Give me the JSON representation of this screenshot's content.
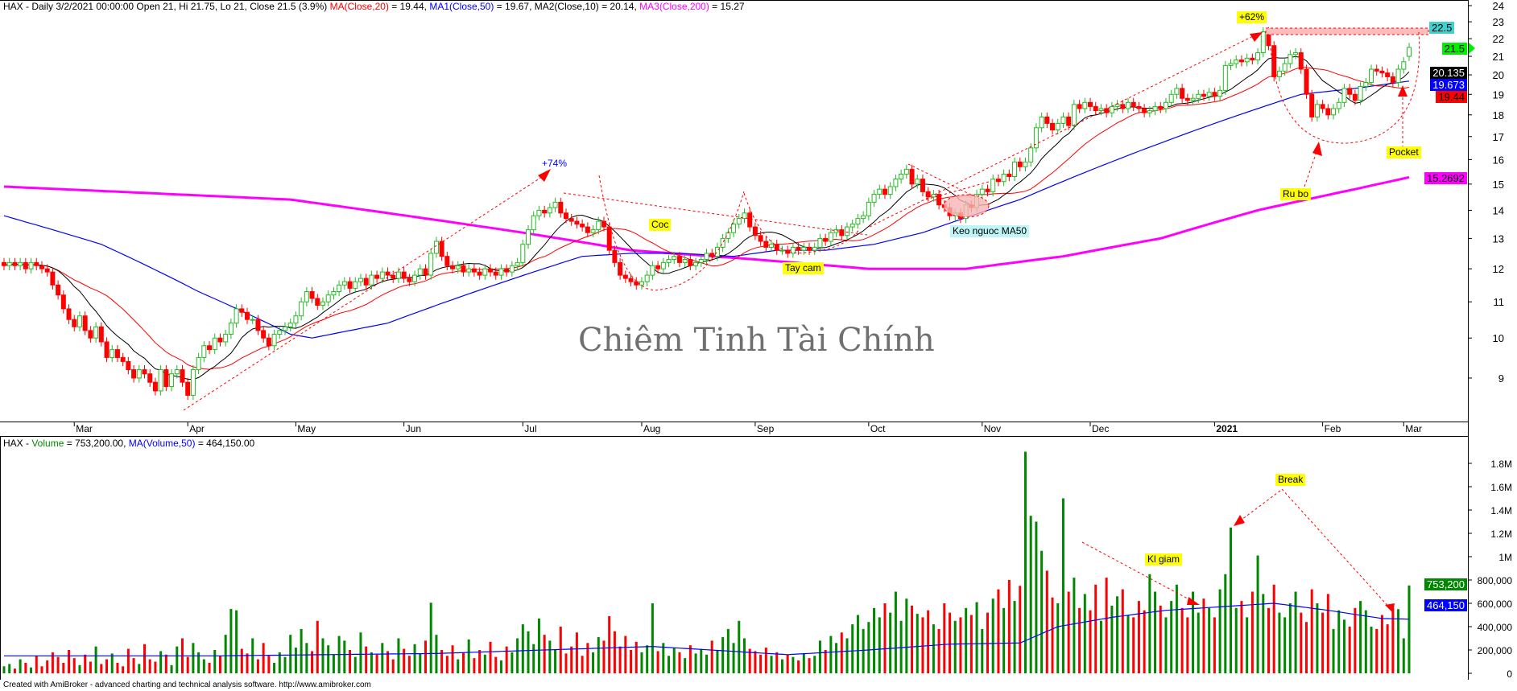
{
  "header": {
    "prefix": "HAX - Daily 3/2/2021 00:00:00 Open 21, Hi 21.75, Lo 21, Close 21.5 (3.9%) ",
    "ma20_label": "MA(Close,20)",
    "ma20_value": " = 19.44, ",
    "ma50_label": "MA1(Close,50)",
    "ma50_value": " = 19.67, MA2(Close,10) = 20.14, ",
    "ma200_label": "MA3(Close,200)",
    "ma200_value": " = 15.27"
  },
  "volume_header": {
    "prefix": "HAX - ",
    "volume_label": "Volume",
    "volume_value": " = 753,200.00, ",
    "ma_label": "MA(Volume,50)",
    "ma_value": " = 464,150.00"
  },
  "watermark": "Chiêm Tinh Tài Chính",
  "footer": "Created with AmiBroker - advanced charting and technical analysis software. http://www.amibroker.com",
  "annotations": {
    "gain_74": "+74%",
    "coc": "Coc",
    "tay_cam": "Tay cam",
    "keo_nguoc": "Keo nguoc MA50",
    "gain_62": "+62%",
    "ru_bo": "Ru bo",
    "pocket": "Pocket",
    "kl_giam": "Kl giam",
    "break": "Break"
  },
  "axis_tags": {
    "resistance": "22.5",
    "last_close": "21.5",
    "ma10": "20.135",
    "ma50": "19.673",
    "ma20": "19.44",
    "ma200": "15.2692",
    "volume": "753,200",
    "volume_ma": "464,150"
  },
  "colors": {
    "up": "#22bb22",
    "down": "#ff0000",
    "ma10": "#000000",
    "ma20": "#ff0000",
    "ma50": "#0000ff",
    "ma200": "#ff00ff",
    "volume_up": "#008800",
    "volume_down": "#ff0000",
    "volume_ma": "#0000ff"
  },
  "chart_data": {
    "type": "candlestick",
    "symbol": "HAX",
    "interval": "Daily",
    "y_scale": "log",
    "price_ticks": [
      24,
      23,
      22,
      21,
      20,
      19,
      18,
      17,
      16,
      15,
      14,
      13,
      12,
      11,
      10,
      9
    ],
    "volume_ticks": [
      {
        "value": 0,
        "label": "0"
      },
      {
        "value": 200000,
        "label": "200,000"
      },
      {
        "value": 400000,
        "label": "400,000"
      },
      {
        "value": 600000,
        "label": "600,000"
      },
      {
        "value": 800000,
        "label": "800,000"
      },
      {
        "value": 1000000,
        "label": "1M"
      },
      {
        "value": 1200000,
        "label": "1.2M"
      },
      {
        "value": 1400000,
        "label": "1.4M"
      },
      {
        "value": 1600000,
        "label": "1.6M"
      },
      {
        "value": 1800000,
        "label": "1.8M"
      }
    ],
    "month_ticks": [
      {
        "label": "Mar",
        "bar": 13
      },
      {
        "label": "Apr",
        "bar": 34
      },
      {
        "label": "May",
        "bar": 54
      },
      {
        "label": "Jun",
        "bar": 74
      },
      {
        "label": "Jul",
        "bar": 96
      },
      {
        "label": "Aug",
        "bar": 118
      },
      {
        "label": "Sep",
        "bar": 139
      },
      {
        "label": "Oct",
        "bar": 160
      },
      {
        "label": "Nov",
        "bar": 181
      },
      {
        "label": "Dec",
        "bar": 201
      },
      {
        "label": "2021",
        "bar": 224,
        "bold": true
      },
      {
        "label": "Feb",
        "bar": 244
      },
      {
        "label": "Mar",
        "bar": 259
      }
    ],
    "close": [
      12.1,
      12.2,
      12.1,
      12.2,
      12.0,
      12.2,
      12.1,
      12.0,
      11.9,
      11.5,
      11.2,
      10.8,
      10.5,
      10.3,
      10.6,
      10.2,
      10.0,
      10.3,
      9.9,
      9.5,
      9.7,
      9.5,
      9.4,
      9.2,
      9.0,
      9.2,
      9.1,
      8.9,
      8.7,
      9.2,
      8.8,
      9.1,
      9.2,
      8.9,
      8.6,
      9.2,
      9.5,
      9.8,
      9.7,
      10.0,
      9.9,
      10.1,
      10.4,
      10.8,
      10.7,
      10.5,
      10.5,
      10.2,
      10.0,
      9.8,
      10.1,
      10.2,
      10.3,
      10.4,
      10.6,
      11.0,
      11.3,
      11.1,
      10.9,
      11.0,
      11.2,
      11.3,
      11.5,
      11.6,
      11.4,
      11.6,
      11.7,
      11.5,
      11.8,
      11.7,
      11.9,
      11.8,
      11.7,
      11.9,
      11.7,
      11.6,
      11.8,
      12.0,
      11.8,
      12.5,
      12.9,
      12.4,
      12.1,
      12.0,
      12.1,
      11.9,
      12.0,
      11.9,
      11.8,
      12.0,
      11.9,
      11.8,
      12.0,
      11.9,
      12.1,
      12.2,
      12.8,
      13.3,
      13.8,
      14.0,
      13.9,
      14.1,
      14.3,
      13.9,
      13.7,
      13.6,
      13.5,
      13.4,
      13.2,
      13.3,
      13.6,
      13.4,
      12.6,
      12.2,
      11.8,
      11.7,
      11.6,
      11.5,
      11.6,
      11.8,
      12.1,
      12.0,
      12.2,
      12.3,
      12.4,
      12.2,
      12.3,
      12.1,
      12.2,
      12.3,
      12.5,
      12.4,
      12.7,
      13.0,
      13.2,
      13.5,
      13.7,
      13.9,
      13.4,
      13.1,
      12.9,
      12.7,
      12.8,
      12.6,
      12.6,
      12.5,
      12.7,
      12.6,
      12.7,
      12.6,
      12.7,
      13.0,
      12.9,
      13.2,
      13.3,
      13.1,
      13.4,
      13.5,
      13.7,
      13.8,
      14.3,
      14.6,
      14.8,
      14.6,
      14.9,
      15.2,
      15.4,
      15.6,
      15.0,
      15.2,
      14.7,
      14.5,
      14.6,
      14.2,
      14.1,
      13.8,
      13.9,
      13.7,
      14.2,
      14.1,
      14.6,
      14.8,
      14.7,
      15.2,
      15.1,
      15.4,
      15.3,
      15.9,
      15.7,
      15.9,
      16.5,
      17.4,
      17.9,
      17.6,
      17.3,
      17.6,
      17.9,
      17.5,
      18.5,
      18.3,
      18.6,
      18.4,
      18.2,
      18.3,
      18.1,
      18.4,
      18.5,
      18.3,
      18.6,
      18.4,
      18.3,
      18.1,
      18.2,
      18.4,
      18.3,
      18.6,
      19.0,
      19.3,
      18.8,
      18.7,
      18.8,
      19.0,
      18.9,
      19.1,
      18.9,
      19.2,
      20.5,
      20.6,
      20.8,
      20.7,
      20.9,
      20.8,
      21.2,
      22.4,
      21.6,
      19.9,
      20.2,
      20.6,
      21.1,
      21.2,
      20.3,
      19.0,
      17.9,
      18.5,
      18.3,
      18.0,
      18.3,
      18.6,
      19.3,
      19.0,
      18.7,
      19.4,
      19.6,
      20.3,
      20.2,
      20.1,
      19.9,
      19.6,
      20.3,
      20.7,
      21.5
    ],
    "open": [
      12.2,
      12.1,
      12.2,
      12.1,
      12.2,
      12.0,
      12.2,
      12.1,
      12.0,
      11.9,
      11.5,
      11.2,
      10.8,
      10.5,
      10.3,
      10.6,
      10.2,
      10.0,
      10.3,
      9.9,
      9.5,
      9.7,
      9.5,
      9.4,
      9.2,
      9.0,
      9.2,
      9.1,
      8.9,
      8.7,
      9.2,
      8.8,
      9.1,
      9.2,
      8.9,
      8.6,
      9.2,
      9.5,
      9.8,
      9.7,
      10.0,
      9.9,
      10.1,
      10.4,
      10.8,
      10.7,
      10.5,
      10.5,
      10.2,
      10.0,
      9.8,
      10.1,
      10.2,
      10.3,
      10.4,
      10.6,
      11.0,
      11.3,
      11.1,
      10.9,
      11.0,
      11.2,
      11.3,
      11.5,
      11.6,
      11.4,
      11.6,
      11.7,
      11.5,
      11.8,
      11.7,
      11.9,
      11.8,
      11.7,
      11.9,
      11.7,
      11.6,
      11.8,
      12.0,
      11.8,
      12.5,
      12.9,
      12.4,
      12.1,
      12.0,
      12.1,
      11.9,
      12.0,
      11.9,
      11.8,
      12.0,
      11.9,
      11.8,
      12.0,
      11.9,
      12.1,
      12.2,
      12.8,
      13.3,
      13.8,
      14.0,
      13.9,
      14.1,
      14.3,
      13.9,
      13.7,
      13.6,
      13.5,
      13.4,
      13.2,
      13.3,
      13.6,
      13.4,
      12.6,
      12.2,
      11.8,
      11.7,
      11.6,
      11.5,
      11.6,
      11.8,
      12.1,
      12.0,
      12.2,
      12.3,
      12.4,
      12.2,
      12.3,
      12.1,
      12.2,
      12.3,
      12.5,
      12.4,
      12.7,
      13.0,
      13.2,
      13.5,
      13.7,
      13.9,
      13.4,
      13.1,
      12.9,
      12.7,
      12.8,
      12.6,
      12.6,
      12.5,
      12.7,
      12.6,
      12.7,
      12.6,
      12.7,
      13.0,
      12.9,
      13.2,
      13.3,
      13.1,
      13.4,
      13.5,
      13.7,
      13.8,
      14.3,
      14.6,
      14.8,
      14.6,
      14.9,
      15.2,
      15.4,
      15.6,
      15.0,
      15.2,
      14.7,
      14.5,
      14.6,
      14.2,
      14.1,
      13.8,
      13.9,
      13.7,
      14.2,
      14.1,
      14.6,
      14.8,
      14.7,
      15.2,
      15.1,
      15.4,
      15.3,
      15.9,
      15.7,
      15.9,
      16.5,
      17.4,
      17.9,
      17.6,
      17.3,
      17.6,
      17.9,
      17.5,
      18.5,
      18.3,
      18.6,
      18.4,
      18.2,
      18.3,
      18.1,
      18.4,
      18.5,
      18.3,
      18.6,
      18.4,
      18.3,
      18.1,
      18.2,
      18.4,
      18.3,
      18.6,
      19.0,
      19.3,
      18.8,
      18.7,
      18.8,
      19.0,
      18.9,
      19.1,
      18.9,
      19.2,
      20.5,
      20.6,
      20.8,
      20.7,
      20.9,
      20.8,
      21.2,
      22.4,
      21.6,
      19.9,
      20.2,
      20.6,
      21.1,
      21.2,
      20.3,
      19.0,
      17.9,
      18.5,
      18.3,
      18.0,
      18.3,
      18.6,
      19.3,
      19.0,
      18.7,
      19.4,
      19.6,
      20.3,
      20.2,
      20.1,
      19.9,
      19.6,
      20.3,
      21.0
    ],
    "volume": [
      60000,
      80000,
      40000,
      120000,
      90000,
      50000,
      150000,
      60000,
      110000,
      180000,
      140000,
      90000,
      200000,
      130000,
      70000,
      160000,
      100000,
      230000,
      80000,
      120000,
      170000,
      90000,
      60000,
      210000,
      130000,
      80000,
      250000,
      120000,
      100000,
      190000,
      160000,
      70000,
      230000,
      300000,
      140000,
      260000,
      180000,
      120000,
      90000,
      200000,
      150000,
      330000,
      552000,
      540000,
      210000,
      170000,
      300000,
      120000,
      260000,
      150000,
      90000,
      180000,
      140000,
      330000,
      220000,
      380000,
      260000,
      190000,
      450000,
      300000,
      240000,
      160000,
      320000,
      280000,
      200000,
      140000,
      350000,
      230000,
      180000,
      160000,
      260000,
      190000,
      120000,
      300000,
      210000,
      150000,
      250000,
      170000,
      280000,
      605000,
      330000,
      200000,
      150000,
      240000,
      120000,
      180000,
      290000,
      130000,
      200000,
      160000,
      270000,
      140000,
      110000,
      230000,
      180000,
      300000,
      420000,
      360000,
      250000,
      470000,
      330000,
      280000,
      200000,
      400000,
      170000,
      230000,
      350000,
      150000,
      260000,
      180000,
      310000,
      280000,
      490000,
      360000,
      230000,
      320000,
      200000,
      270000,
      180000,
      240000,
      600000,
      190000,
      260000,
      150000,
      220000,
      180000,
      130000,
      240000,
      170000,
      210000,
      160000,
      280000,
      200000,
      310000,
      380000,
      260000,
      450000,
      300000,
      210000,
      190000,
      160000,
      220000,
      150000,
      180000,
      120000,
      160000,
      140000,
      110000,
      170000,
      130000,
      150000,
      280000,
      200000,
      320000,
      260000,
      350000,
      300000,
      420000,
      500000,
      380000,
      440000,
      560000,
      480000,
      600000,
      520000,
      700000,
      450000,
      640000,
      580000,
      510000,
      480000,
      540000,
      420000,
      380000,
      600000,
      520000,
      450000,
      480000,
      560000,
      500000,
      610000,
      380000,
      520000,
      640000,
      720000,
      560000,
      800000,
      620000,
      750000,
      1900000,
      1350000,
      1300000,
      1050000,
      880000,
      650000,
      600000,
      1500000,
      700000,
      820000,
      560000,
      680000,
      540000,
      760000,
      450000,
      820000,
      580000,
      660000,
      720000,
      500000,
      480000,
      620000,
      540000,
      850000,
      700000,
      580000,
      480000,
      620000,
      760000,
      560000,
      480000,
      700000,
      520000,
      640000,
      560000,
      480000,
      720000,
      850000,
      1250000,
      560000,
      620000,
      480000,
      700000,
      1010000,
      680000,
      560000,
      760000,
      520000,
      480000,
      600000,
      700000,
      520000,
      440000,
      720000,
      600000,
      520000,
      680000,
      380000,
      540000,
      460000,
      400000,
      560000,
      620000,
      540000,
      400000,
      380000,
      500000,
      420000,
      560000,
      550000,
      300000,
      753200
    ],
    "ma50_line": [
      [
        0,
        13.8
      ],
      [
        18,
        12.8
      ],
      [
        36,
        11.3
      ],
      [
        53,
        10.1
      ],
      [
        57,
        10.0
      ],
      [
        71,
        10.4
      ],
      [
        80,
        10.9
      ],
      [
        89,
        11.4
      ],
      [
        98,
        11.9
      ],
      [
        107,
        12.4
      ],
      [
        116,
        12.5
      ],
      [
        125,
        12.5
      ],
      [
        135,
        12.4
      ],
      [
        143,
        12.6
      ],
      [
        152,
        12.6
      ],
      [
        161,
        12.8
      ],
      [
        170,
        13.2
      ],
      [
        179,
        13.8
      ],
      [
        188,
        14.4
      ],
      [
        197,
        15.2
      ],
      [
        206,
        16.0
      ],
      [
        215,
        16.8
      ],
      [
        224,
        17.6
      ],
      [
        232,
        18.3
      ],
      [
        240,
        19.0
      ],
      [
        250,
        19.3
      ],
      [
        260,
        19.673
      ]
    ],
    "ma200_line": [
      [
        0,
        14.9
      ],
      [
        53,
        14.4
      ],
      [
        96,
        13.2
      ],
      [
        116,
        12.6
      ],
      [
        139,
        12.3
      ],
      [
        160,
        12.0
      ],
      [
        178,
        12.0
      ],
      [
        196,
        12.4
      ],
      [
        214,
        13.0
      ],
      [
        232,
        14.0
      ],
      [
        250,
        14.8
      ],
      [
        260,
        15.2692
      ]
    ],
    "volume_ma_line": [
      [
        0,
        150000
      ],
      [
        40,
        150000
      ],
      [
        80,
        170000
      ],
      [
        120,
        230000
      ],
      [
        145,
        160000
      ],
      [
        160,
        200000
      ],
      [
        175,
        250000
      ],
      [
        188,
        260000
      ],
      [
        195,
        400000
      ],
      [
        205,
        480000
      ],
      [
        215,
        540000
      ],
      [
        225,
        570000
      ],
      [
        235,
        600000
      ],
      [
        245,
        540000
      ],
      [
        255,
        470000
      ],
      [
        260,
        464150
      ]
    ]
  }
}
